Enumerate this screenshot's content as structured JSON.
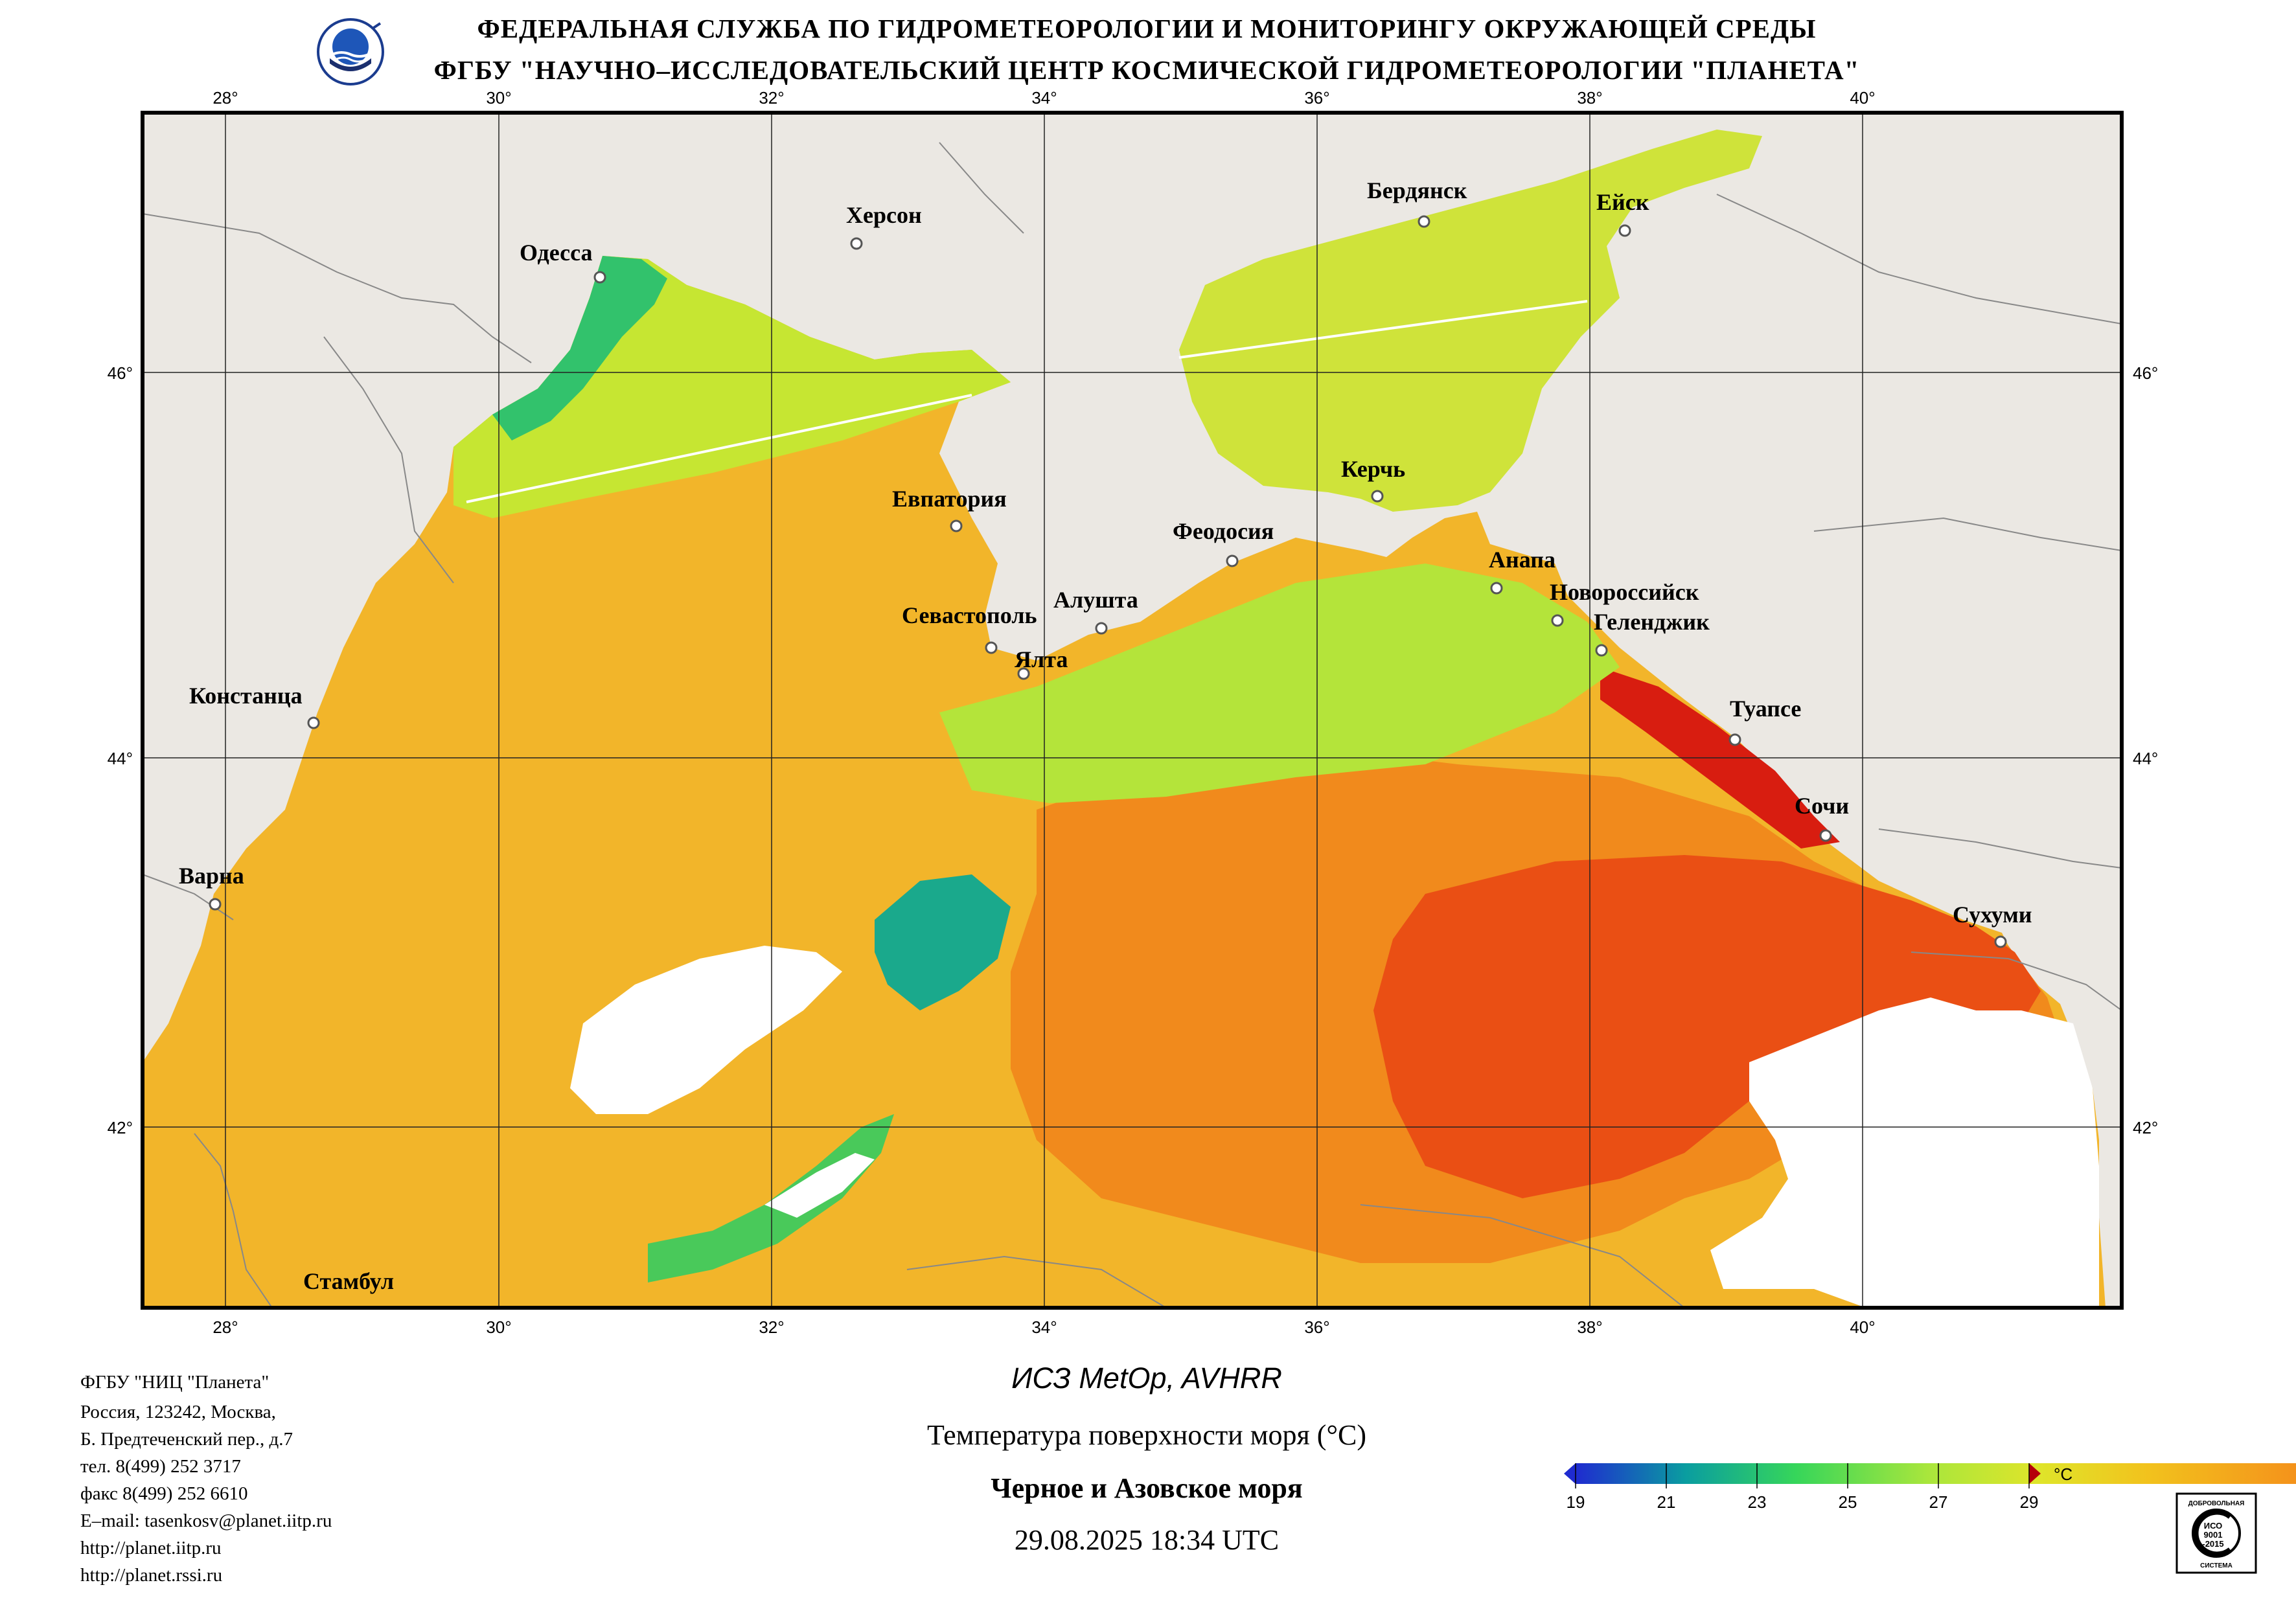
{
  "header": {
    "line1": "ФЕДЕРАЛЬНАЯ СЛУЖБА ПО ГИДРОМЕТЕОРОЛОГИИ И МОНИТОРИНГУ ОКРУЖАЮЩЕЙ СРЕДЫ",
    "line2": "ФГБУ \"НАУЧНО–ИССЛЕДОВАТЕЛЬСКИЙ ЦЕНТР КОСМИЧЕСКОЙ ГИДРОМЕТЕОРОЛОГИИ \"ПЛАНЕТА\""
  },
  "map": {
    "lon_labels": [
      "28°",
      "30°",
      "32°",
      "34°",
      "36°",
      "38°",
      "40°"
    ],
    "lat_labels": [
      "46°",
      "44°",
      "42°"
    ],
    "cities": [
      "Одесса",
      "Херсон",
      "Бердянск",
      "Ейск",
      "Евпатория",
      "Керчь",
      "Феодосия",
      "Анапа",
      "Новороссийск",
      "Геленджик",
      "Севастополь",
      "Алушта",
      "Ялта",
      "Констанца",
      "Туапсе",
      "Сочи",
      "Варна",
      "Сухуми",
      "Стамбул"
    ],
    "colors": {
      "land": "#ebe8e3",
      "cloud": "#ffffff",
      "border": "#777777",
      "grid": "#222222",
      "sst_scale": [
        "#1f2bd0",
        "#0a9da0",
        "#36d65a",
        "#a9e63c",
        "#dfe52a",
        "#f2c21d",
        "#f4941b",
        "#ee5a14",
        "#dc1a10",
        "#b5000a"
      ]
    }
  },
  "colorbar": {
    "ticks": [
      "19",
      "21",
      "23",
      "25",
      "27",
      "29"
    ],
    "unit": "°C",
    "range": [
      19,
      29
    ]
  },
  "info": {
    "org": "ФГБУ \"НИЦ \"Планета\"",
    "address1": "Россия, 123242, Москва,",
    "address2": "Б. Предтеченский пер., д.7",
    "phone": "тел. 8(499) 252 3717",
    "fax": "факс 8(499) 252 6610",
    "email": "E–mail: tasenkosv@planet.iitp.ru",
    "url1": "http://planet.iitp.ru",
    "url2": "http://planet.rssi.ru"
  },
  "caption": {
    "satellite": "ИСЗ MetOp, AVHRR",
    "parameter": "Температура поверхности моря (°С)",
    "region": "Черное и Азовское моря",
    "datetime": "29.08.2025 18:34 UTC"
  },
  "certificate": {
    "top": "ДОБРОВОЛЬНАЯ",
    "middle1": "ИСО",
    "middle2": "9001",
    "middle3": "-2015",
    "bottom": "СИСТЕМА"
  }
}
